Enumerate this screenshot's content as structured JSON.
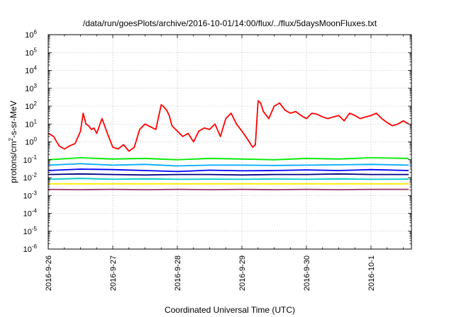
{
  "chart_data": {
    "type": "line",
    "title": "/data/run/goesPlots/archive/2016-10-01/14:00/flux/../flux/5daysMoonFluxes.txt",
    "xlabel": "Coordinated Universal Time (UTC)",
    "ylabel_parts": [
      "protons/cm",
      "2",
      "-s-sr-MeV"
    ],
    "y_scale": "log",
    "ylim": [
      1e-06,
      1000000.0
    ],
    "y_ticks": [
      {
        "value": 1e-06,
        "base": "10",
        "exp": "-6"
      },
      {
        "value": 1e-05,
        "base": "10",
        "exp": "-5"
      },
      {
        "value": 0.0001,
        "base": "10",
        "exp": "-4"
      },
      {
        "value": 0.001,
        "base": "10",
        "exp": "-3"
      },
      {
        "value": 0.01,
        "base": "10",
        "exp": "-2"
      },
      {
        "value": 0.1,
        "base": "10",
        "exp": "-1"
      },
      {
        "value": 1,
        "base": "10",
        "exp": "0"
      },
      {
        "value": 10,
        "base": "10",
        "exp": "1"
      },
      {
        "value": 100,
        "base": "10",
        "exp": "2"
      },
      {
        "value": 1000,
        "base": "10",
        "exp": "3"
      },
      {
        "value": 10000,
        "base": "10",
        "exp": "4"
      },
      {
        "value": 100000,
        "base": "10",
        "exp": "5"
      },
      {
        "value": 1000000,
        "base": "10",
        "exp": "6"
      }
    ],
    "x_ticks": [
      "2016-9-26",
      "2016-9-27",
      "2016-9-28",
      "2016-9-29",
      "2016-9-30",
      "2016-10-1"
    ],
    "xlim": [
      "2016-09-26 00:00",
      "2016-10-01 14:00"
    ],
    "grid": true,
    "series": [
      {
        "color": "#ff0000",
        "x": [
          "2016-09-26 00:00",
          "2016-09-26 02:00",
          "2016-09-26 04:00",
          "2016-09-26 06:00",
          "2016-09-26 08:00",
          "2016-09-26 10:00",
          "2016-09-26 12:00",
          "2016-09-26 13:00",
          "2016-09-26 14:00",
          "2016-09-26 15:00",
          "2016-09-26 16:00",
          "2016-09-26 17:00",
          "2016-09-26 18:00",
          "2016-09-26 20:00",
          "2016-09-26 22:00",
          "2016-09-27 00:00",
          "2016-09-27 02:00",
          "2016-09-27 04:00",
          "2016-09-27 06:00",
          "2016-09-27 08:00",
          "2016-09-27 10:00",
          "2016-09-27 12:00",
          "2016-09-27 14:00",
          "2016-09-27 16:00",
          "2016-09-27 18:00",
          "2016-09-27 19:00",
          "2016-09-27 20:00",
          "2016-09-27 21:00",
          "2016-09-27 22:00",
          "2016-09-28 00:00",
          "2016-09-28 02:00",
          "2016-09-28 04:00",
          "2016-09-28 06:00",
          "2016-09-28 08:00",
          "2016-09-28 10:00",
          "2016-09-28 12:00",
          "2016-09-28 14:00",
          "2016-09-28 16:00",
          "2016-09-28 18:00",
          "2016-09-28 20:00",
          "2016-09-28 22:00",
          "2016-09-29 00:00",
          "2016-09-29 02:00",
          "2016-09-29 04:00",
          "2016-09-29 05:00",
          "2016-09-29 06:00",
          "2016-09-29 07:00",
          "2016-09-29 08:00",
          "2016-09-29 10:00",
          "2016-09-29 12:00",
          "2016-09-29 14:00",
          "2016-09-29 16:00",
          "2016-09-29 18:00",
          "2016-09-29 20:00",
          "2016-09-29 22:00",
          "2016-09-30 00:00",
          "2016-09-30 02:00",
          "2016-09-30 04:00",
          "2016-09-30 06:00",
          "2016-09-30 08:00",
          "2016-09-30 10:00",
          "2016-09-30 12:00",
          "2016-09-30 14:00",
          "2016-09-30 16:00",
          "2016-09-30 18:00",
          "2016-09-30 20:00",
          "2016-09-30 22:00",
          "2016-10-01 00:00",
          "2016-10-01 02:00",
          "2016-10-01 04:00",
          "2016-10-01 06:00",
          "2016-10-01 08:00",
          "2016-10-01 10:00",
          "2016-10-01 12:00",
          "2016-10-01 14:00"
        ],
        "values": [
          3,
          2,
          0.6,
          0.4,
          0.6,
          0.8,
          4,
          40,
          10,
          8,
          5,
          6,
          3,
          20,
          3,
          0.5,
          0.4,
          0.7,
          0.3,
          0.5,
          5,
          10,
          7,
          5,
          120,
          90,
          60,
          30,
          8,
          4,
          2,
          3,
          1,
          4,
          6,
          5,
          10,
          2,
          20,
          40,
          10,
          4,
          1.5,
          0.5,
          0.7,
          200,
          150,
          50,
          20,
          100,
          150,
          60,
          40,
          50,
          30,
          20,
          40,
          35,
          25,
          20,
          25,
          30,
          15,
          40,
          30,
          20,
          25,
          30,
          40,
          20,
          12,
          8,
          10,
          15,
          10
        ]
      },
      {
        "color": "#00ee00",
        "x": [
          "2016-09-26 00:00",
          "2016-09-26 12:00",
          "2016-09-27 00:00",
          "2016-09-27 12:00",
          "2016-09-28 00:00",
          "2016-09-28 12:00",
          "2016-09-29 00:00",
          "2016-09-29 12:00",
          "2016-09-30 00:00",
          "2016-09-30 12:00",
          "2016-10-01 00:00",
          "2016-10-01 14:00"
        ],
        "values": [
          0.1,
          0.13,
          0.11,
          0.12,
          0.1,
          0.12,
          0.11,
          0.1,
          0.12,
          0.11,
          0.13,
          0.12
        ]
      },
      {
        "color": "#00aaff",
        "x": [
          "2016-09-26 00:00",
          "2016-09-26 12:00",
          "2016-09-27 00:00",
          "2016-09-27 12:00",
          "2016-09-28 00:00",
          "2016-09-28 12:00",
          "2016-09-29 00:00",
          "2016-09-29 12:00",
          "2016-09-30 00:00",
          "2016-09-30 12:00",
          "2016-10-01 00:00",
          "2016-10-01 14:00"
        ],
        "values": [
          0.05,
          0.06,
          0.05,
          0.055,
          0.045,
          0.05,
          0.05,
          0.048,
          0.05,
          0.052,
          0.055,
          0.05
        ]
      },
      {
        "color": "#0000ff",
        "x": [
          "2016-09-26 00:00",
          "2016-09-26 12:00",
          "2016-09-27 00:00",
          "2016-09-27 12:00",
          "2016-09-28 00:00",
          "2016-09-28 12:00",
          "2016-09-29 00:00",
          "2016-09-29 12:00",
          "2016-09-30 00:00",
          "2016-09-30 12:00",
          "2016-10-01 00:00",
          "2016-10-01 14:00"
        ],
        "values": [
          0.025,
          0.03,
          0.028,
          0.025,
          0.022,
          0.026,
          0.024,
          0.025,
          0.027,
          0.025,
          0.028,
          0.025
        ]
      },
      {
        "color": "#000088",
        "x": [
          "2016-09-26 00:00",
          "2016-09-26 12:00",
          "2016-09-27 00:00",
          "2016-09-27 12:00",
          "2016-09-28 00:00",
          "2016-09-28 12:00",
          "2016-09-29 00:00",
          "2016-09-29 12:00",
          "2016-09-30 00:00",
          "2016-09-30 12:00",
          "2016-10-01 00:00",
          "2016-10-01 14:00"
        ],
        "values": [
          0.015,
          0.016,
          0.015,
          0.014,
          0.015,
          0.015,
          0.014,
          0.015,
          0.015,
          0.016,
          0.015,
          0.015
        ]
      },
      {
        "color": "#00cccc",
        "x": [
          "2016-09-26 00:00",
          "2016-09-26 12:00",
          "2016-09-27 00:00",
          "2016-09-27 12:00",
          "2016-09-28 00:00",
          "2016-09-28 12:00",
          "2016-09-29 00:00",
          "2016-09-29 12:00",
          "2016-09-30 00:00",
          "2016-09-30 12:00",
          "2016-10-01 00:00",
          "2016-10-01 14:00"
        ],
        "values": [
          0.008,
          0.009,
          0.008,
          0.0085,
          0.008,
          0.0082,
          0.008,
          0.0083,
          0.008,
          0.0085,
          0.008,
          0.0082
        ]
      },
      {
        "color": "#ffee00",
        "x": [
          "2016-09-26 00:00",
          "2016-09-26 12:00",
          "2016-09-27 00:00",
          "2016-09-27 12:00",
          "2016-09-28 00:00",
          "2016-09-28 12:00",
          "2016-09-29 00:00",
          "2016-09-29 12:00",
          "2016-09-30 00:00",
          "2016-09-30 12:00",
          "2016-10-01 00:00",
          "2016-10-01 14:00"
        ],
        "values": [
          0.0045,
          0.0045,
          0.0045,
          0.0045,
          0.0045,
          0.0045,
          0.0045,
          0.0045,
          0.0045,
          0.0045,
          0.0045,
          0.0045
        ]
      },
      {
        "color": "#993366",
        "x": [
          "2016-09-26 00:00",
          "2016-09-26 12:00",
          "2016-09-27 00:00",
          "2016-09-27 12:00",
          "2016-09-28 00:00",
          "2016-09-28 12:00",
          "2016-09-29 00:00",
          "2016-09-29 12:00",
          "2016-09-30 00:00",
          "2016-09-30 12:00",
          "2016-10-01 00:00",
          "2016-10-01 14:00"
        ],
        "values": [
          0.0022,
          0.0021,
          0.0022,
          0.0021,
          0.0022,
          0.0021,
          0.0022,
          0.0021,
          0.0022,
          0.0021,
          0.0022,
          0.0022
        ]
      }
    ]
  }
}
